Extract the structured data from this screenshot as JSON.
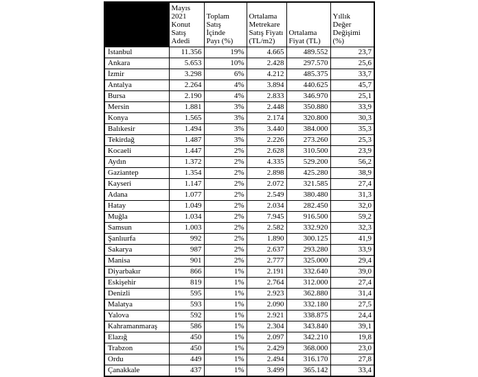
{
  "table": {
    "title_hint": "Mayıs 2021 konut satış istatistikleri (il bazında)",
    "corner_cell": {
      "filled": true,
      "color": "#000000",
      "label": ""
    },
    "columns": [
      {
        "key": "city",
        "label": ""
      },
      {
        "key": "sales_count",
        "label": "Mayıs\n2021\nKonut\nSatış\nAdedi"
      },
      {
        "key": "share",
        "label": "Toplam\nSatış\nİçinde\nPayı (%)"
      },
      {
        "key": "price_per_m2",
        "label": "Ortalama\nMetrekare\nSatış Fiyatı\n(TL/m2)"
      },
      {
        "key": "avg_price",
        "label": "Ortalama\nFiyat (TL)"
      },
      {
        "key": "yearly_change",
        "label": "Yıllık\nDeğer\nDeğişimi\n(%)"
      }
    ],
    "rows": [
      [
        "İstanbul",
        "11.356",
        "19%",
        "4.665",
        "489.552",
        "23,7"
      ],
      [
        "Ankara",
        "5.653",
        "10%",
        "2.428",
        "297.570",
        "25,6"
      ],
      [
        "İzmir",
        "3.298",
        "6%",
        "4.212",
        "485.375",
        "33,7"
      ],
      [
        "Antalya",
        "2.264",
        "4%",
        "3.894",
        "440.625",
        "45,7"
      ],
      [
        "Bursa",
        "2.190",
        "4%",
        "2.833",
        "346.970",
        "25,1"
      ],
      [
        "Mersin",
        "1.881",
        "3%",
        "2.448",
        "350.880",
        "33,9"
      ],
      [
        "Konya",
        "1.565",
        "3%",
        "2.174",
        "320.800",
        "30,3"
      ],
      [
        "Balıkesir",
        "1.494",
        "3%",
        "3.440",
        "384.000",
        "35,3"
      ],
      [
        "Tekirdağ",
        "1.487",
        "3%",
        "2.226",
        "273.260",
        "25,3"
      ],
      [
        "Kocaeli",
        "1.447",
        "2%",
        "2.628",
        "310.500",
        "23,9"
      ],
      [
        "Aydın",
        "1.372",
        "2%",
        "4.335",
        "529.200",
        "56,2"
      ],
      [
        "Gaziantep",
        "1.354",
        "2%",
        "2.898",
        "425.280",
        "38,9"
      ],
      [
        "Kayseri",
        "1.147",
        "2%",
        "2.072",
        "321.585",
        "27,4"
      ],
      [
        "Adana",
        "1.077",
        "2%",
        "2.549",
        "380.480",
        "31,3"
      ],
      [
        "Hatay",
        "1.049",
        "2%",
        "2.034",
        "282.450",
        "32,0"
      ],
      [
        "Muğla",
        "1.034",
        "2%",
        "7.945",
        "916.500",
        "59,2"
      ],
      [
        "Samsun",
        "1.003",
        "2%",
        "2.582",
        "332.920",
        "32,3"
      ],
      [
        "Şanlıurfa",
        "992",
        "2%",
        "1.890",
        "300.125",
        "41,9"
      ],
      [
        "Sakarya",
        "987",
        "2%",
        "2.637",
        "293.280",
        "33,9"
      ],
      [
        "Manisa",
        "901",
        "2%",
        "2.777",
        "325.000",
        "29,4"
      ],
      [
        "Diyarbakır",
        "866",
        "1%",
        "2.191",
        "332.640",
        "39,0"
      ],
      [
        "Eskişehir",
        "819",
        "1%",
        "2.764",
        "312.000",
        "27,4"
      ],
      [
        "Denizli",
        "595",
        "1%",
        "2.923",
        "362.880",
        "31,4"
      ],
      [
        "Malatya",
        "593",
        "1%",
        "2.090",
        "332.180",
        "27,5"
      ],
      [
        "Yalova",
        "592",
        "1%",
        "2.921",
        "338.875",
        "24,4"
      ],
      [
        "Kahramanmaraş",
        "586",
        "1%",
        "2.304",
        "343.840",
        "39,1"
      ],
      [
        "Elazığ",
        "450",
        "1%",
        "2.097",
        "342.210",
        "19,8"
      ],
      [
        "Trabzon",
        "450",
        "1%",
        "2.429",
        "368.000",
        "23,0"
      ],
      [
        "Ordu",
        "449",
        "1%",
        "2.494",
        "316.170",
        "27,8"
      ],
      [
        "Çanakkale",
        "437",
        "1%",
        "3.499",
        "365.142",
        "33,4"
      ]
    ]
  }
}
